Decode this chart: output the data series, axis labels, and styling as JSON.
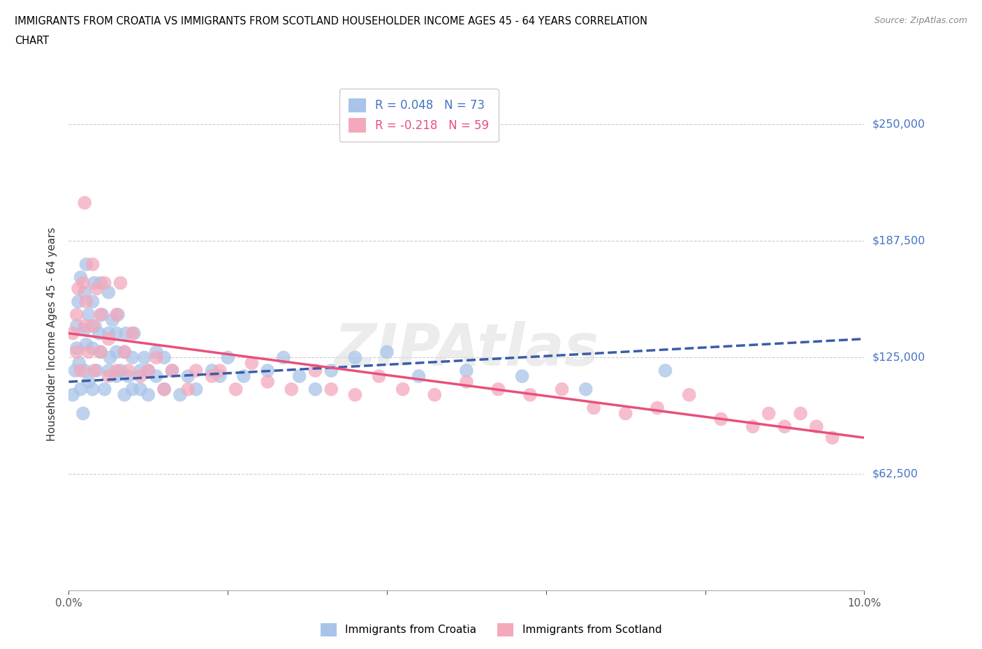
{
  "title_line1": "IMMIGRANTS FROM CROATIA VS IMMIGRANTS FROM SCOTLAND HOUSEHOLDER INCOME AGES 45 - 64 YEARS CORRELATION",
  "title_line2": "CHART",
  "source": "Source: ZipAtlas.com",
  "ylabel": "Householder Income Ages 45 - 64 years",
  "xlim": [
    0,
    0.1
  ],
  "ylim": [
    0,
    275000
  ],
  "yticks": [
    0,
    62500,
    125000,
    187500,
    250000
  ],
  "ytick_labels": [
    "",
    "$62,500",
    "$125,000",
    "$187,500",
    "$250,000"
  ],
  "xticks": [
    0.0,
    0.02,
    0.04,
    0.06,
    0.08,
    0.1
  ],
  "xtick_labels": [
    "0.0%",
    "",
    "",
    "",
    "",
    "10.0%"
  ],
  "hlines": [
    250000,
    187500,
    125000,
    62500
  ],
  "watermark": "ZIPAtlas",
  "croatia_color": "#a8c4e8",
  "scotland_color": "#f4a8bb",
  "croatia_line_color": "#3a5ca8",
  "scotland_line_color": "#e8507a",
  "R_croatia": 0.048,
  "N_croatia": 73,
  "R_scotland": -0.218,
  "N_scotland": 59,
  "legend_label_croatia": "Immigrants from Croatia",
  "legend_label_scotland": "Immigrants from Scotland",
  "croatia_x": [
    0.0005,
    0.0008,
    0.001,
    0.001,
    0.0012,
    0.0013,
    0.0015,
    0.0015,
    0.0018,
    0.002,
    0.002,
    0.002,
    0.0022,
    0.0022,
    0.0025,
    0.0025,
    0.003,
    0.003,
    0.003,
    0.0032,
    0.0033,
    0.0035,
    0.0038,
    0.004,
    0.004,
    0.0042,
    0.0045,
    0.005,
    0.005,
    0.005,
    0.0052,
    0.0055,
    0.006,
    0.006,
    0.006,
    0.0062,
    0.0065,
    0.007,
    0.007,
    0.0072,
    0.0075,
    0.008,
    0.008,
    0.0082,
    0.009,
    0.009,
    0.0095,
    0.01,
    0.01,
    0.011,
    0.011,
    0.012,
    0.012,
    0.013,
    0.014,
    0.015,
    0.016,
    0.018,
    0.019,
    0.02,
    0.022,
    0.025,
    0.027,
    0.029,
    0.031,
    0.033,
    0.036,
    0.04,
    0.044,
    0.05,
    0.057,
    0.065,
    0.075
  ],
  "croatia_y": [
    105000,
    118000,
    130000,
    142000,
    155000,
    122000,
    108000,
    168000,
    95000,
    140000,
    118000,
    160000,
    132000,
    175000,
    148000,
    112000,
    155000,
    130000,
    108000,
    165000,
    142000,
    118000,
    138000,
    165000,
    128000,
    148000,
    108000,
    160000,
    138000,
    118000,
    125000,
    145000,
    128000,
    138000,
    115000,
    148000,
    118000,
    128000,
    105000,
    138000,
    115000,
    125000,
    108000,
    138000,
    118000,
    108000,
    125000,
    118000,
    105000,
    115000,
    128000,
    108000,
    125000,
    118000,
    105000,
    115000,
    108000,
    118000,
    115000,
    125000,
    115000,
    118000,
    125000,
    115000,
    108000,
    118000,
    125000,
    128000,
    115000,
    118000,
    115000,
    108000,
    118000
  ],
  "scotland_x": [
    0.0005,
    0.001,
    0.001,
    0.0012,
    0.0015,
    0.0018,
    0.002,
    0.002,
    0.0022,
    0.0025,
    0.003,
    0.003,
    0.0032,
    0.0035,
    0.004,
    0.004,
    0.0045,
    0.005,
    0.005,
    0.006,
    0.006,
    0.0065,
    0.007,
    0.0075,
    0.008,
    0.009,
    0.01,
    0.011,
    0.012,
    0.013,
    0.015,
    0.016,
    0.018,
    0.019,
    0.021,
    0.023,
    0.025,
    0.028,
    0.031,
    0.033,
    0.036,
    0.039,
    0.042,
    0.046,
    0.05,
    0.054,
    0.058,
    0.062,
    0.066,
    0.07,
    0.074,
    0.078,
    0.082,
    0.086,
    0.088,
    0.09,
    0.092,
    0.094,
    0.096
  ],
  "scotland_y": [
    138000,
    128000,
    148000,
    162000,
    118000,
    165000,
    208000,
    142000,
    155000,
    128000,
    175000,
    142000,
    118000,
    162000,
    148000,
    128000,
    165000,
    135000,
    115000,
    148000,
    118000,
    165000,
    128000,
    118000,
    138000,
    115000,
    118000,
    125000,
    108000,
    118000,
    108000,
    118000,
    115000,
    118000,
    108000,
    122000,
    112000,
    108000,
    118000,
    108000,
    105000,
    115000,
    108000,
    105000,
    112000,
    108000,
    105000,
    108000,
    98000,
    95000,
    98000,
    105000,
    92000,
    88000,
    95000,
    88000,
    95000,
    88000,
    82000
  ]
}
